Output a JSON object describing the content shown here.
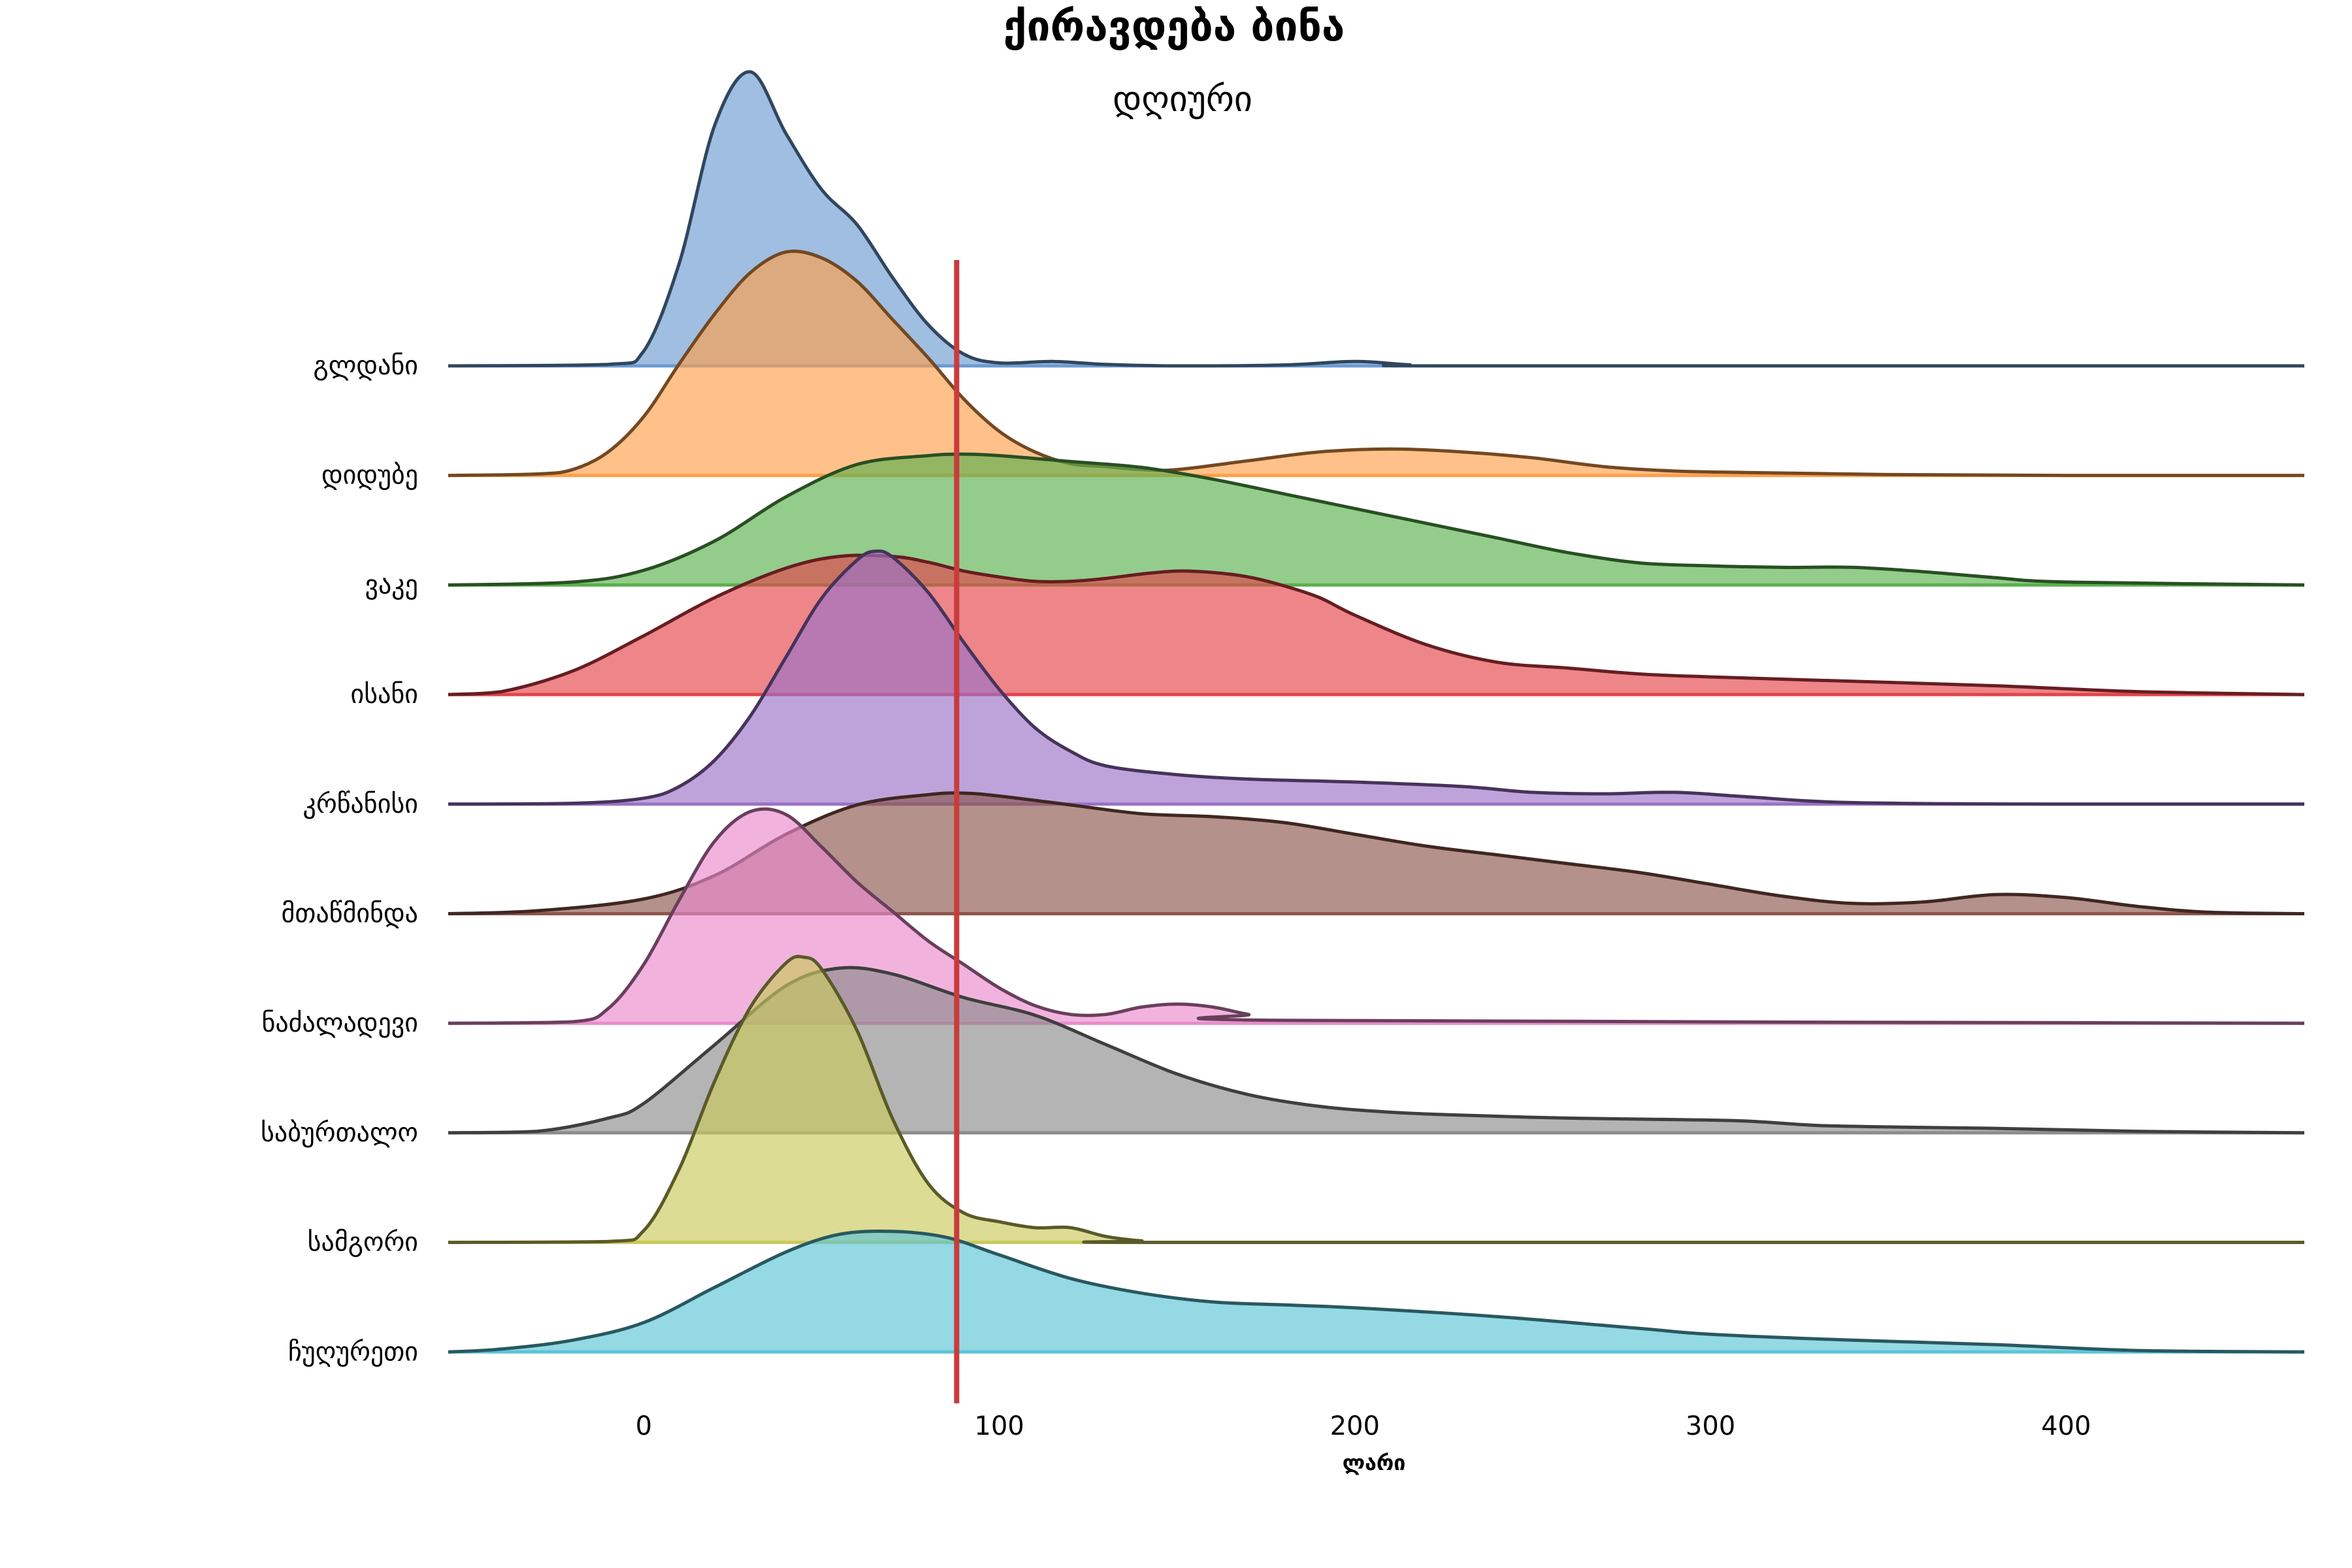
{
  "chart_data": {
    "type": "ridgeline",
    "title": "ქირავდება ბინა",
    "subtitle": "დღიური",
    "xlabel": "ლარი",
    "xlim": [
      -55,
      467
    ],
    "xticks": [
      0,
      100,
      200,
      300,
      400
    ],
    "reference_line": {
      "x": 88,
      "color": "#c83c3c"
    },
    "grid": false,
    "legend": "none",
    "categories": [
      "გლდანი",
      "დიდუბე",
      "ვაკე",
      "ისანი",
      "კრწანისი",
      "მთაწმინდა",
      "ნაძალადევი",
      "საბურთალო",
      "სამგორი",
      "ჩუღურეთი"
    ],
    "series": [
      {
        "name": "გლდანი",
        "color": "#6b9bd1",
        "x": [
          -55,
          -10,
          0,
          10,
          20,
          30,
          40,
          50,
          60,
          70,
          80,
          90,
          100,
          115,
          130,
          150,
          180,
          200,
          215,
          230,
          467
        ],
        "density": [
          0,
          0.005,
          0.05,
          0.35,
          0.82,
          1.0,
          0.79,
          0.6,
          0.48,
          0.3,
          0.14,
          0.04,
          0.01,
          0.015,
          0.005,
          0,
          0.003,
          0.015,
          0.004,
          0,
          0
        ]
      },
      {
        "name": "დიდუბე",
        "color": "#ff9f4a",
        "x": [
          -55,
          -30,
          -20,
          -10,
          0,
          10,
          20,
          30,
          40,
          50,
          60,
          70,
          80,
          90,
          100,
          110,
          120,
          130,
          140,
          150,
          170,
          190,
          210,
          230,
          250,
          270,
          290,
          310,
          350,
          400,
          467
        ],
        "density": [
          0,
          0.005,
          0.02,
          0.08,
          0.2,
          0.38,
          0.55,
          0.69,
          0.76,
          0.74,
          0.66,
          0.53,
          0.4,
          0.26,
          0.15,
          0.08,
          0.04,
          0.03,
          0.02,
          0.02,
          0.05,
          0.08,
          0.09,
          0.08,
          0.06,
          0.03,
          0.015,
          0.01,
          0.003,
          0,
          0
        ]
      },
      {
        "name": "ვაკე",
        "color": "#5ab04e",
        "x": [
          -55,
          -20,
          0,
          20,
          40,
          60,
          80,
          90,
          100,
          120,
          140,
          160,
          180,
          200,
          220,
          240,
          260,
          280,
          300,
          320,
          340,
          360,
          380,
          400,
          467
        ],
        "density": [
          0,
          0.01,
          0.05,
          0.15,
          0.3,
          0.41,
          0.44,
          0.445,
          0.44,
          0.42,
          0.4,
          0.36,
          0.31,
          0.26,
          0.21,
          0.16,
          0.11,
          0.075,
          0.065,
          0.06,
          0.06,
          0.045,
          0.025,
          0.01,
          0
        ]
      },
      {
        "name": "ისანი",
        "color": "#e3434a",
        "x": [
          -55,
          -40,
          -20,
          0,
          20,
          40,
          55,
          70,
          80,
          90,
          100,
          110,
          120,
          130,
          140,
          150,
          160,
          170,
          180,
          190,
          200,
          220,
          240,
          260,
          280,
          300,
          340,
          380,
          420,
          467
        ],
        "density": [
          0,
          0.01,
          0.08,
          0.2,
          0.33,
          0.43,
          0.47,
          0.47,
          0.45,
          0.42,
          0.4,
          0.385,
          0.385,
          0.395,
          0.41,
          0.42,
          0.415,
          0.4,
          0.37,
          0.33,
          0.27,
          0.17,
          0.11,
          0.09,
          0.07,
          0.06,
          0.045,
          0.03,
          0.01,
          0
        ]
      },
      {
        "name": "კრწანისი",
        "color": "#9b72c8",
        "x": [
          -55,
          -20,
          0,
          10,
          20,
          30,
          40,
          50,
          60,
          65,
          70,
          80,
          90,
          100,
          110,
          120,
          130,
          150,
          170,
          200,
          230,
          250,
          270,
          290,
          310,
          340,
          400,
          467
        ],
        "density": [
          0,
          0.003,
          0.02,
          0.06,
          0.15,
          0.3,
          0.5,
          0.7,
          0.83,
          0.86,
          0.84,
          0.72,
          0.55,
          0.39,
          0.26,
          0.18,
          0.13,
          0.1,
          0.085,
          0.075,
          0.06,
          0.04,
          0.035,
          0.04,
          0.025,
          0.005,
          0,
          0
        ]
      },
      {
        "name": "მთაწმინდა",
        "color": "#8c564b",
        "x": [
          -55,
          -30,
          0,
          20,
          40,
          60,
          80,
          90,
          100,
          120,
          140,
          160,
          180,
          200,
          220,
          240,
          260,
          280,
          300,
          320,
          340,
          360,
          380,
          400,
          420,
          440,
          467
        ],
        "density": [
          0,
          0.01,
          0.05,
          0.13,
          0.27,
          0.37,
          0.405,
          0.41,
          0.4,
          0.37,
          0.34,
          0.33,
          0.31,
          0.27,
          0.23,
          0.2,
          0.17,
          0.14,
          0.1,
          0.06,
          0.035,
          0.04,
          0.065,
          0.055,
          0.025,
          0.005,
          0
        ]
      },
      {
        "name": "ნაძალადევი",
        "color": "#e98bcc",
        "x": [
          -55,
          -20,
          -10,
          0,
          10,
          20,
          30,
          40,
          50,
          60,
          70,
          80,
          90,
          100,
          110,
          120,
          130,
          140,
          150,
          160,
          170,
          180,
          467
        ],
        "density": [
          0,
          0.005,
          0.05,
          0.2,
          0.42,
          0.62,
          0.72,
          0.71,
          0.6,
          0.48,
          0.38,
          0.28,
          0.2,
          0.12,
          0.06,
          0.03,
          0.03,
          0.055,
          0.065,
          0.055,
          0.03,
          0.01,
          0
        ]
      },
      {
        "name": "საბურთალო",
        "color": "#8c8c8c",
        "x": [
          -55,
          -30,
          -10,
          0,
          20,
          40,
          55,
          70,
          90,
          110,
          130,
          150,
          170,
          190,
          210,
          230,
          260,
          290,
          310,
          330,
          350,
          380,
          420,
          467
        ],
        "density": [
          0,
          0.005,
          0.05,
          0.1,
          0.3,
          0.5,
          0.56,
          0.54,
          0.46,
          0.4,
          0.3,
          0.2,
          0.13,
          0.09,
          0.07,
          0.06,
          0.05,
          0.045,
          0.04,
          0.025,
          0.02,
          0.015,
          0.005,
          0
        ]
      },
      {
        "name": "სამგორი",
        "color": "#c9c95a",
        "x": [
          -55,
          -10,
          0,
          10,
          20,
          30,
          40,
          45,
          50,
          60,
          70,
          80,
          90,
          100,
          110,
          120,
          130,
          140,
          150,
          467
        ],
        "density": [
          0,
          0.003,
          0.04,
          0.25,
          0.55,
          0.8,
          0.95,
          0.97,
          0.93,
          0.72,
          0.42,
          0.2,
          0.1,
          0.07,
          0.05,
          0.05,
          0.02,
          0.005,
          0,
          0
        ]
      },
      {
        "name": "ჩუღურეთი",
        "color": "#5ac4d6",
        "x": [
          -55,
          -40,
          -20,
          0,
          20,
          40,
          55,
          70,
          85,
          100,
          120,
          140,
          160,
          180,
          200,
          240,
          280,
          300,
          340,
          380,
          420,
          467
        ],
        "density": [
          0,
          0.01,
          0.04,
          0.1,
          0.22,
          0.34,
          0.4,
          0.41,
          0.39,
          0.33,
          0.25,
          0.2,
          0.17,
          0.16,
          0.15,
          0.12,
          0.08,
          0.06,
          0.04,
          0.025,
          0.005,
          0
        ]
      }
    ]
  }
}
